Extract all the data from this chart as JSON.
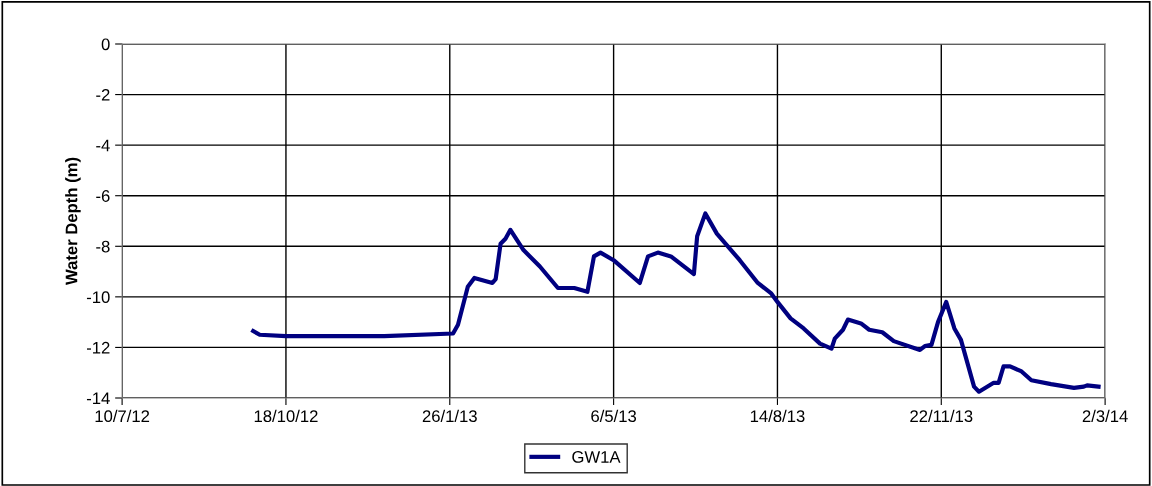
{
  "chart_data": {
    "type": "line",
    "ylabel": "Water Depth (m)",
    "xlim": [
      "2012-07-10",
      "2014-03-02"
    ],
    "xticks": [
      {
        "value": "2012-07-10",
        "label": "10/7/12"
      },
      {
        "value": "2012-10-18",
        "label": "18/10/12"
      },
      {
        "value": "2013-01-26",
        "label": "26/1/13"
      },
      {
        "value": "2013-05-06",
        "label": "6/5/13"
      },
      {
        "value": "2013-08-14",
        "label": "14/8/13"
      },
      {
        "value": "2013-11-22",
        "label": "22/11/13"
      },
      {
        "value": "2014-03-02",
        "label": "2/3/14"
      }
    ],
    "ylim": [
      -14,
      0
    ],
    "yticks": [
      -14,
      -12,
      -10,
      -8,
      -6,
      -4,
      -2,
      0
    ],
    "grid": true,
    "legend": "bottom",
    "marker": "none",
    "line_style": "solid",
    "series": [
      {
        "name": "GW1A",
        "color": "#000080",
        "x": [
          "2012-09-28",
          "2012-10-02",
          "2012-10-18",
          "2012-11-17",
          "2012-12-17",
          "2013-01-28",
          "2013-01-31",
          "2013-02-06",
          "2013-02-10",
          "2013-02-21",
          "2013-02-23",
          "2013-02-26",
          "2013-03-01",
          "2013-03-04",
          "2013-03-12",
          "2013-03-22",
          "2013-04-02",
          "2013-04-12",
          "2013-04-20",
          "2013-04-24",
          "2013-04-28",
          "2013-05-06",
          "2013-05-22",
          "2013-05-27",
          "2013-06-02",
          "2013-06-10",
          "2013-06-24",
          "2013-06-26",
          "2013-07-01",
          "2013-07-08",
          "2013-07-22",
          "2013-08-02",
          "2013-08-10",
          "2013-08-14",
          "2013-08-22",
          "2013-08-30",
          "2013-09-09",
          "2013-09-16",
          "2013-09-18",
          "2013-09-23",
          "2013-09-26",
          "2013-10-04",
          "2013-10-09",
          "2013-10-17",
          "2013-10-24",
          "2013-11-09",
          "2013-11-12",
          "2013-11-16",
          "2013-11-20",
          "2013-11-25",
          "2013-11-30",
          "2013-12-04",
          "2013-12-12",
          "2013-12-15",
          "2013-12-24",
          "2013-12-27",
          "2013-12-30",
          "2014-01-03",
          "2014-01-10",
          "2014-01-16",
          "2014-01-28",
          "2014-02-11",
          "2014-02-17",
          "2014-02-19",
          "2014-02-26"
        ],
        "values": [
          -11.35,
          -11.5,
          -11.55,
          -11.55,
          -11.55,
          -11.45,
          -11.1,
          -9.6,
          -9.25,
          -9.45,
          -9.3,
          -7.9,
          -7.7,
          -7.35,
          -8.15,
          -8.8,
          -9.65,
          -9.65,
          -9.8,
          -8.4,
          -8.25,
          -8.55,
          -9.45,
          -8.4,
          -8.25,
          -8.4,
          -9.1,
          -7.6,
          -6.7,
          -7.5,
          -8.55,
          -9.45,
          -9.85,
          -10.2,
          -10.85,
          -11.25,
          -11.85,
          -12.05,
          -11.65,
          -11.3,
          -10.9,
          -11.05,
          -11.3,
          -11.4,
          -11.75,
          -12.1,
          -11.95,
          -11.9,
          -11.0,
          -10.2,
          -11.25,
          -11.7,
          -13.55,
          -13.75,
          -13.4,
          -13.4,
          -12.75,
          -12.75,
          -12.95,
          -13.3,
          -13.45,
          -13.6,
          -13.55,
          -13.5,
          -13.55
        ]
      }
    ]
  }
}
